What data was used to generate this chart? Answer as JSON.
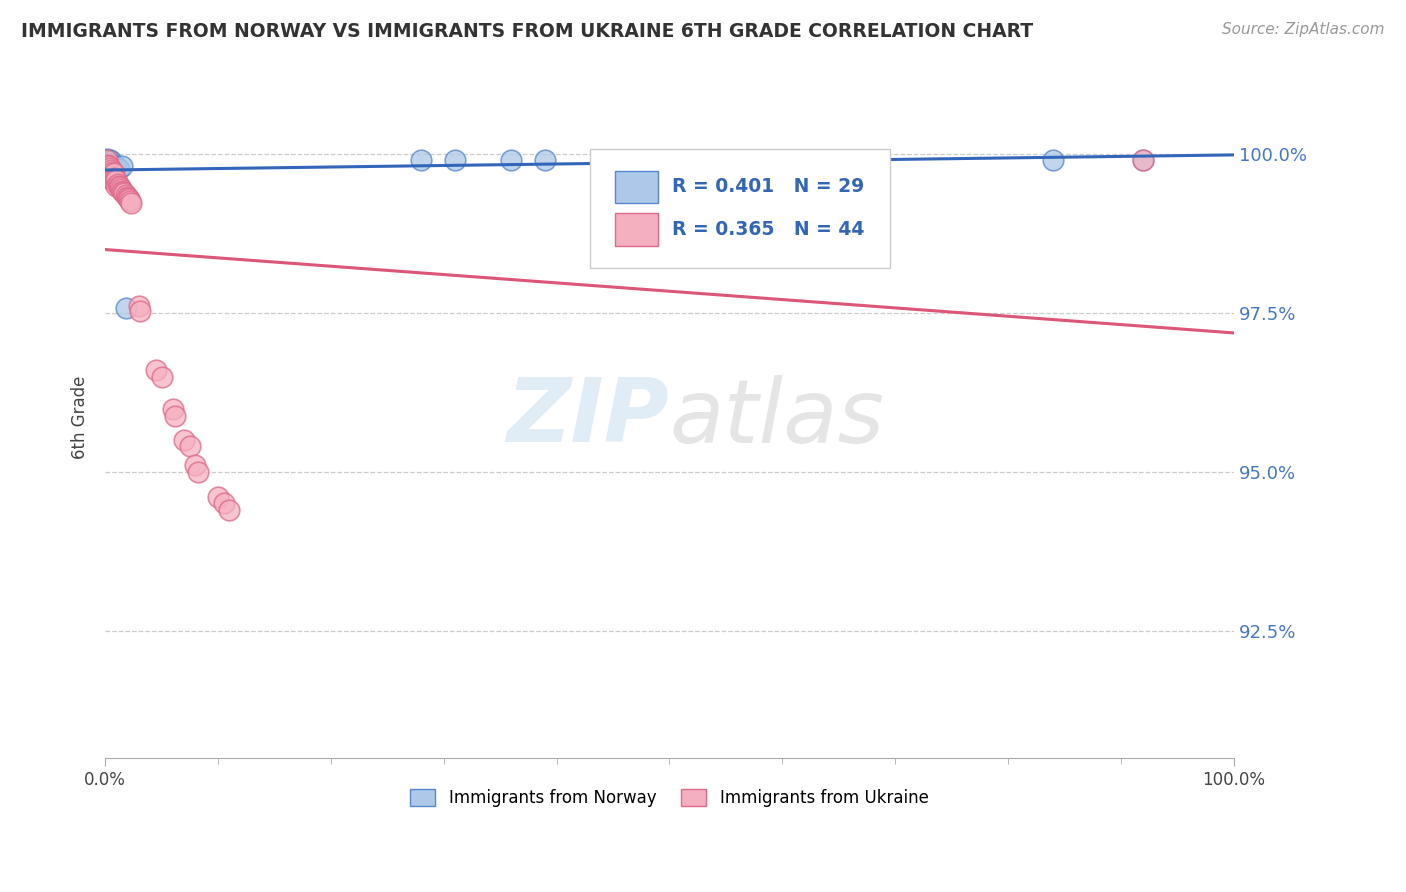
{
  "title": "IMMIGRANTS FROM NORWAY VS IMMIGRANTS FROM UKRAINE 6TH GRADE CORRELATION CHART",
  "source": "Source: ZipAtlas.com",
  "ylabel": "6th Grade",
  "ytick_labels": [
    "100.0%",
    "97.5%",
    "95.0%",
    "92.5%"
  ],
  "ytick_values": [
    1.0,
    0.975,
    0.95,
    0.925
  ],
  "xlim": [
    0.0,
    1.0
  ],
  "ylim": [
    0.905,
    1.012
  ],
  "legend_norway": "R = 0.401   N = 29",
  "legend_ukraine": "R = 0.365   N = 44",
  "norway_color": "#adc8e8",
  "ukraine_color": "#f5b0c0",
  "norway_edge_color": "#5588cc",
  "ukraine_edge_color": "#e06888",
  "norway_line_color": "#3366bb",
  "ukraine_line_color": "#dd5577",
  "watermark_text": "ZIPatlas",
  "norway_x": [
    0.001,
    0.002,
    0.002,
    0.003,
    0.003,
    0.003,
    0.004,
    0.004,
    0.004,
    0.005,
    0.005,
    0.006,
    0.006,
    0.007,
    0.007,
    0.008,
    0.009,
    0.01,
    0.012,
    0.015,
    0.018,
    0.28,
    0.31,
    0.36,
    0.39,
    0.54,
    0.6,
    0.84,
    0.92
  ],
  "norway_y": [
    0.999,
    0.9992,
    0.9988,
    0.999,
    0.9988,
    0.9986,
    0.999,
    0.9988,
    0.9984,
    0.9988,
    0.9984,
    0.9982,
    0.998,
    0.9978,
    0.9976,
    0.9982,
    0.998,
    0.998,
    0.9976,
    0.998,
    0.9758,
    0.999,
    0.999,
    0.999,
    0.999,
    0.999,
    0.999,
    0.999,
    0.999
  ],
  "ukraine_x": [
    0.002,
    0.002,
    0.003,
    0.004,
    0.004,
    0.005,
    0.005,
    0.006,
    0.006,
    0.007,
    0.007,
    0.008,
    0.008,
    0.008,
    0.009,
    0.01,
    0.01,
    0.011,
    0.012,
    0.013,
    0.014,
    0.015,
    0.016,
    0.017,
    0.018,
    0.019,
    0.02,
    0.021,
    0.022,
    0.023,
    0.03,
    0.031,
    0.045,
    0.05,
    0.06,
    0.062,
    0.07,
    0.075,
    0.08,
    0.082,
    0.1,
    0.105,
    0.11,
    0.92
  ],
  "ukraine_y": [
    0.999,
    0.9982,
    0.998,
    0.9978,
    0.997,
    0.9975,
    0.9965,
    0.9972,
    0.996,
    0.9968,
    0.9958,
    0.997,
    0.9962,
    0.9955,
    0.996,
    0.9958,
    0.995,
    0.9952,
    0.995,
    0.9948,
    0.9945,
    0.9942,
    0.994,
    0.9938,
    0.9935,
    0.9932,
    0.993,
    0.9928,
    0.9925,
    0.9922,
    0.976,
    0.9752,
    0.966,
    0.9648,
    0.9598,
    0.9588,
    0.955,
    0.954,
    0.951,
    0.95,
    0.946,
    0.945,
    0.944,
    0.999
  ]
}
